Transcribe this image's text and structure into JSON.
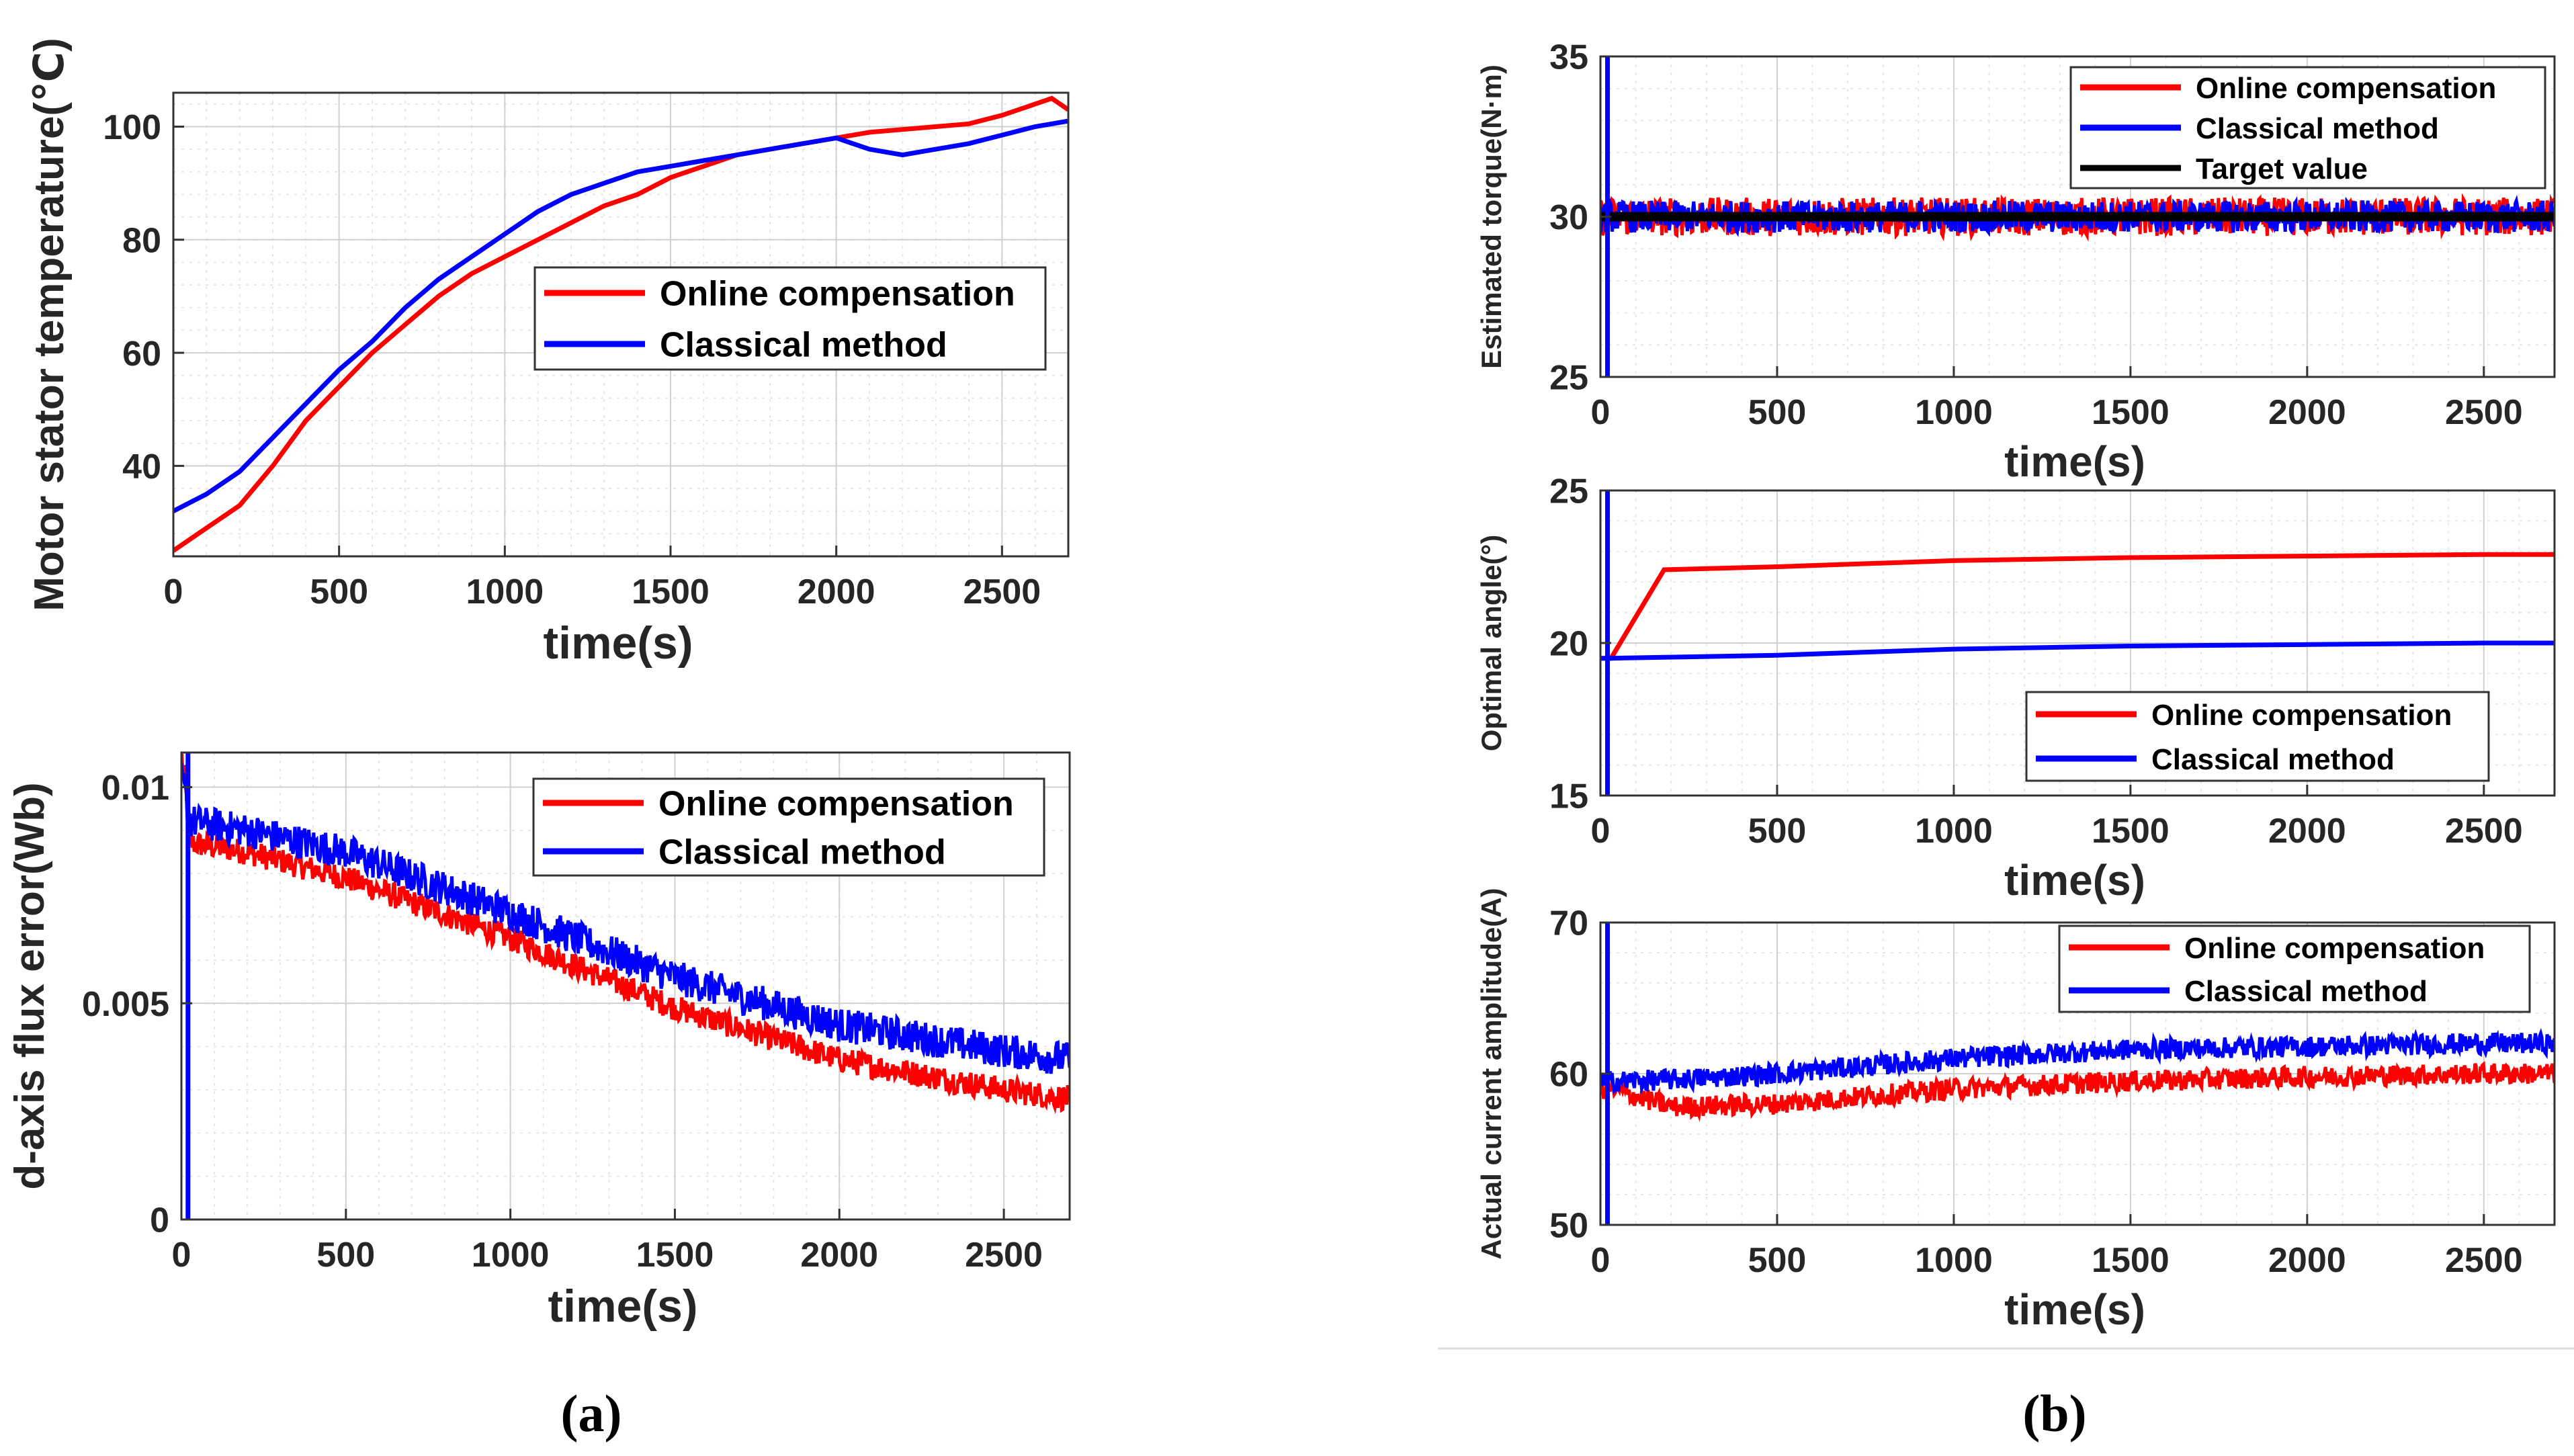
{
  "panel_labels": {
    "a": "(a)",
    "b": "(b)"
  },
  "chart_data": [
    {
      "id": "stator_temp",
      "type": "line",
      "title": "",
      "xlabel": "time(s)",
      "ylabel": "Motor stator temperature(℃)",
      "xlim": [
        0,
        2700
      ],
      "ylim": [
        24,
        106
      ],
      "xticks": [
        0,
        500,
        1000,
        1500,
        2000,
        2500
      ],
      "yticks": [
        40,
        60,
        80,
        100
      ],
      "ytick_labels": [
        "40",
        "60",
        "80",
        "100"
      ],
      "grid": true,
      "legend_position": "center-right",
      "series": [
        {
          "name": "Online compensation",
          "color": "#ff0000",
          "x": [
            0,
            100,
            200,
            300,
            400,
            500,
            600,
            700,
            800,
            900,
            1000,
            1100,
            1200,
            1300,
            1400,
            1500,
            1600,
            1700,
            1800,
            1900,
            2000,
            2100,
            2200,
            2300,
            2400,
            2500,
            2600,
            2650,
            2700
          ],
          "y": [
            25,
            29,
            33,
            40,
            48,
            54,
            60,
            65,
            70,
            74,
            77,
            80,
            83,
            86,
            88,
            91,
            93,
            95,
            96,
            97,
            98,
            99,
            99.5,
            100,
            100.5,
            102,
            104,
            105,
            103
          ]
        },
        {
          "name": "Classical method",
          "color": "#0000ff",
          "x": [
            0,
            100,
            200,
            300,
            400,
            500,
            600,
            700,
            800,
            900,
            1000,
            1100,
            1200,
            1300,
            1400,
            1500,
            1600,
            1700,
            1800,
            1900,
            2000,
            2100,
            2200,
            2300,
            2400,
            2500,
            2600,
            2700
          ],
          "y": [
            32,
            35,
            39,
            45,
            51,
            57,
            62,
            68,
            73,
            77,
            81,
            85,
            88,
            90,
            92,
            93,
            94,
            95,
            96,
            97,
            98,
            96,
            95,
            96,
            97,
            98.5,
            100,
            101
          ]
        }
      ]
    },
    {
      "id": "flux_error",
      "type": "line",
      "title": "",
      "xlabel": "time(s)",
      "ylabel": "d-axis flux error(Wb)",
      "xlim": [
        0,
        2700
      ],
      "ylim": [
        0,
        0.0108
      ],
      "xticks": [
        0,
        500,
        1000,
        1500,
        2000,
        2500
      ],
      "yticks": [
        0,
        0.005,
        0.01
      ],
      "ytick_labels": [
        "0",
        "0.005",
        "0.01"
      ],
      "grid": true,
      "legend_position": "top-right",
      "series": [
        {
          "name": "Online compensation",
          "color": "#ff0000",
          "x": [
            0,
            30,
            200,
            500,
            1000,
            1500,
            2000,
            2500,
            2700
          ],
          "y": [
            0.0108,
            0.0087,
            0.0085,
            0.0079,
            0.0065,
            0.0049,
            0.0037,
            0.003,
            0.0028
          ],
          "noise_band": 0.0003
        },
        {
          "name": "Classical method",
          "color": "#0000ff",
          "x": [
            0,
            30,
            200,
            500,
            1000,
            1500,
            2000,
            2500,
            2700
          ],
          "y": [
            0.0102,
            0.0092,
            0.009,
            0.0085,
            0.0071,
            0.0056,
            0.0045,
            0.0039,
            0.0037
          ],
          "noise_band": 0.0004
        }
      ]
    },
    {
      "id": "torque",
      "type": "line",
      "title": "",
      "xlabel": "time(s)",
      "ylabel": "Estimated torque(N·m)",
      "xlim": [
        0,
        2700
      ],
      "ylim": [
        25,
        35
      ],
      "xticks": [
        0,
        500,
        1000,
        1500,
        2000,
        2500
      ],
      "yticks": [
        25,
        30,
        35
      ],
      "ytick_labels": [
        "25",
        "30",
        "35"
      ],
      "grid": true,
      "legend_position": "top-right",
      "series": [
        {
          "name": "Online compensation",
          "color": "#ff0000",
          "x": [
            0,
            30,
            2700
          ],
          "y": [
            30,
            30,
            30
          ],
          "noise_band": 0.6
        },
        {
          "name": "Classical method",
          "color": "#0000ff",
          "x": [
            0,
            30,
            2700
          ],
          "y": [
            30,
            30,
            30
          ],
          "noise_band": 0.5
        },
        {
          "name": "Target value",
          "color": "#000000",
          "x": [
            0,
            2700
          ],
          "y": [
            30,
            30
          ]
        }
      ]
    },
    {
      "id": "optimal_angle",
      "type": "line",
      "title": "",
      "xlabel": "time(s)",
      "ylabel": "Optimal angle(°)",
      "xlim": [
        0,
        2700
      ],
      "ylim": [
        15,
        25
      ],
      "xticks": [
        0,
        500,
        1000,
        1500,
        2000,
        2500
      ],
      "yticks": [
        15,
        20,
        25
      ],
      "ytick_labels": [
        "15",
        "20",
        "25"
      ],
      "grid": true,
      "legend_position": "lower-right",
      "series": [
        {
          "name": "Online compensation",
          "color": "#ff0000",
          "x": [
            0,
            30,
            180,
            500,
            1000,
            1500,
            2000,
            2500,
            2700
          ],
          "y": [
            19.5,
            19.5,
            22.4,
            22.5,
            22.7,
            22.8,
            22.85,
            22.9,
            22.9
          ]
        },
        {
          "name": "Classical method",
          "color": "#0000ff",
          "x": [
            0,
            30,
            500,
            1000,
            1500,
            2000,
            2500,
            2700
          ],
          "y": [
            19.5,
            19.5,
            19.6,
            19.8,
            19.9,
            19.95,
            20.0,
            20.0
          ]
        }
      ]
    },
    {
      "id": "current_amplitude",
      "type": "line",
      "title": "",
      "xlabel": "time(s)",
      "ylabel": "Actual current amplitude(A)",
      "xlim": [
        0,
        2700
      ],
      "ylim": [
        50,
        70
      ],
      "xticks": [
        0,
        500,
        1000,
        1500,
        2000,
        2500
      ],
      "yticks": [
        50,
        60,
        70
      ],
      "ytick_labels": [
        "50",
        "60",
        "70"
      ],
      "grid": true,
      "legend_position": "top-right",
      "series": [
        {
          "name": "Online compensation",
          "color": "#ff0000",
          "x": [
            0,
            30,
            200,
            500,
            1000,
            1500,
            2000,
            2500,
            2700
          ],
          "y": [
            59,
            59,
            57.8,
            58.0,
            59.0,
            59.5,
            59.8,
            60.0,
            60.0
          ],
          "noise_band": 0.7
        },
        {
          "name": "Classical method",
          "color": "#0000ff",
          "x": [
            0,
            30,
            200,
            500,
            1000,
            1500,
            2000,
            2500,
            2700
          ],
          "y": [
            59.5,
            59.5,
            59.6,
            60.0,
            61.0,
            61.6,
            61.8,
            62.0,
            62.0
          ],
          "noise_band": 0.7
        }
      ]
    }
  ]
}
